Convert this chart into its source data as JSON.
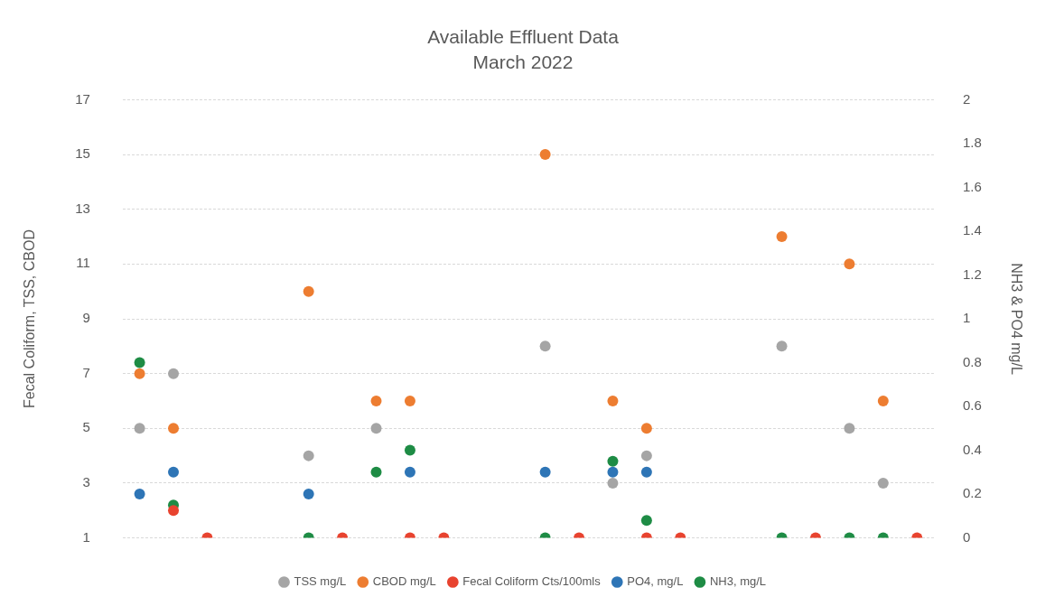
{
  "chart_data": {
    "type": "scatter",
    "title": "Available Effluent Data",
    "subtitle": "March 2022",
    "ylabel": "Fecal Coliform, TSS, CBOD",
    "y2label": "NH3 & PO4 mg/L",
    "categories": [
      null,
      null,
      null,
      null,
      null,
      null,
      null,
      null,
      null,
      null,
      null,
      null,
      null,
      null,
      null,
      null,
      null,
      null,
      null,
      null,
      null,
      null,
      null,
      null
    ],
    "ylim": [
      1,
      17
    ],
    "yticks": [
      1,
      3,
      5,
      7,
      9,
      11,
      13,
      15,
      17
    ],
    "y2lim": [
      0,
      2
    ],
    "y2ticks": [
      0,
      0.2,
      0.4,
      0.6,
      0.8,
      1,
      1.2,
      1.4,
      1.6,
      1.8,
      2
    ],
    "grid": "y",
    "legend": "bottom",
    "marker": "circle",
    "series": [
      {
        "name": "TSS mg/L",
        "color": "#a5a5a5",
        "values": [
          5,
          7,
          null,
          null,
          null,
          4,
          null,
          5,
          null,
          null,
          null,
          null,
          8,
          null,
          3,
          4,
          null,
          null,
          null,
          8,
          null,
          5,
          3,
          null
        ]
      },
      {
        "name": "CBOD mg/L",
        "color": "#ed7d31",
        "values": [
          7,
          5,
          null,
          null,
          null,
          10,
          null,
          6,
          6,
          null,
          null,
          null,
          15,
          null,
          6,
          5,
          null,
          null,
          null,
          12,
          null,
          11,
          6,
          null
        ]
      },
      {
        "name": "Fecal Coliform Cts/100mls",
        "color": "#e8432f",
        "values": [
          null,
          2,
          1,
          null,
          null,
          null,
          1,
          null,
          1,
          1,
          null,
          null,
          null,
          1,
          null,
          1,
          1,
          null,
          null,
          null,
          1,
          null,
          null,
          1
        ]
      },
      {
        "name": "PO4, mg/L",
        "color": "#2e75b6",
        "axis": "y2",
        "values": [
          0.2,
          0.3,
          null,
          null,
          null,
          0.2,
          null,
          null,
          0.3,
          null,
          null,
          null,
          0.3,
          null,
          0.3,
          0.3,
          null,
          null,
          null,
          null,
          null,
          null,
          null,
          null
        ]
      },
      {
        "name": "NH3, mg/L",
        "color": "#1e8c45",
        "axis": "y2",
        "values": [
          0.8,
          0.15,
          null,
          null,
          null,
          0,
          null,
          0.3,
          0.4,
          null,
          null,
          null,
          0,
          null,
          0.35,
          0.08,
          null,
          null,
          null,
          0,
          null,
          0,
          0,
          null
        ]
      }
    ]
  }
}
